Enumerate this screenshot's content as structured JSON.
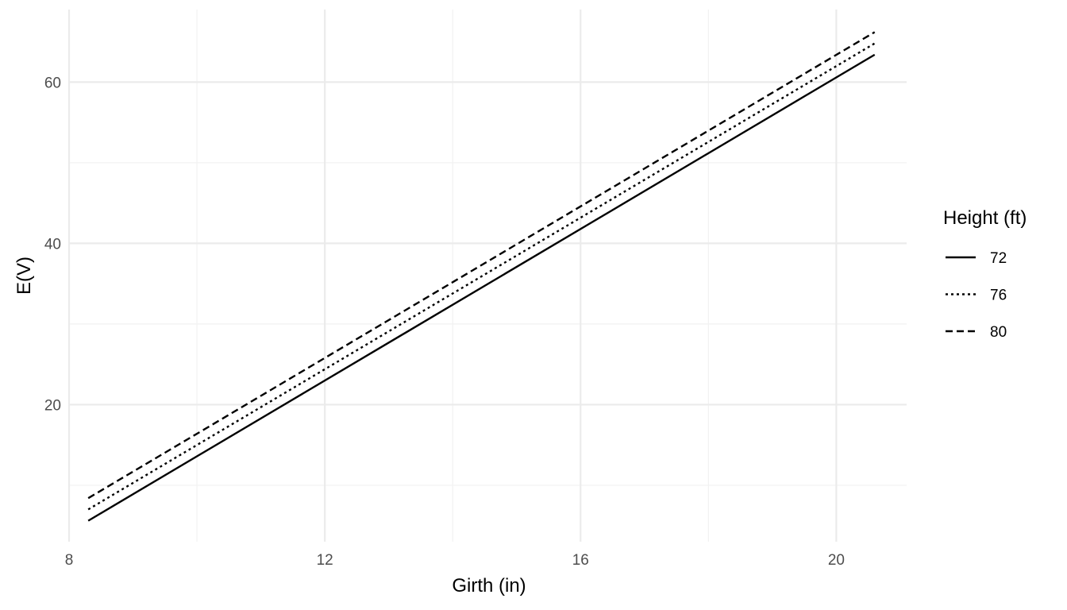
{
  "chart_data": {
    "type": "line",
    "title": "",
    "xlabel": "Girth (in)",
    "ylabel": "E(V)",
    "xlim": [
      8,
      21.1
    ],
    "ylim": [
      3,
      69
    ],
    "x_ticks": [
      8,
      12,
      16,
      20
    ],
    "x_tick_labels": [
      "8",
      "12",
      "16",
      "20"
    ],
    "x_minor": [
      10,
      14,
      18
    ],
    "y_ticks": [
      20,
      40,
      60
    ],
    "y_tick_labels": [
      "20",
      "40",
      "60"
    ],
    "y_minor": [
      10,
      30,
      50
    ],
    "grid": true,
    "legend": {
      "title": "Height (ft)",
      "placement": "right"
    },
    "series": [
      {
        "name": "72",
        "dash": "solid",
        "color": "#000000",
        "x": [
          8.3,
          20.6
        ],
        "y": [
          5.6,
          63.4
        ]
      },
      {
        "name": "76",
        "dash": "dotted",
        "color": "#000000",
        "x": [
          8.3,
          20.6
        ],
        "y": [
          7.0,
          64.8
        ]
      },
      {
        "name": "80",
        "dash": "dashed",
        "color": "#000000",
        "x": [
          8.3,
          20.6
        ],
        "y": [
          8.4,
          66.2
        ]
      }
    ]
  }
}
